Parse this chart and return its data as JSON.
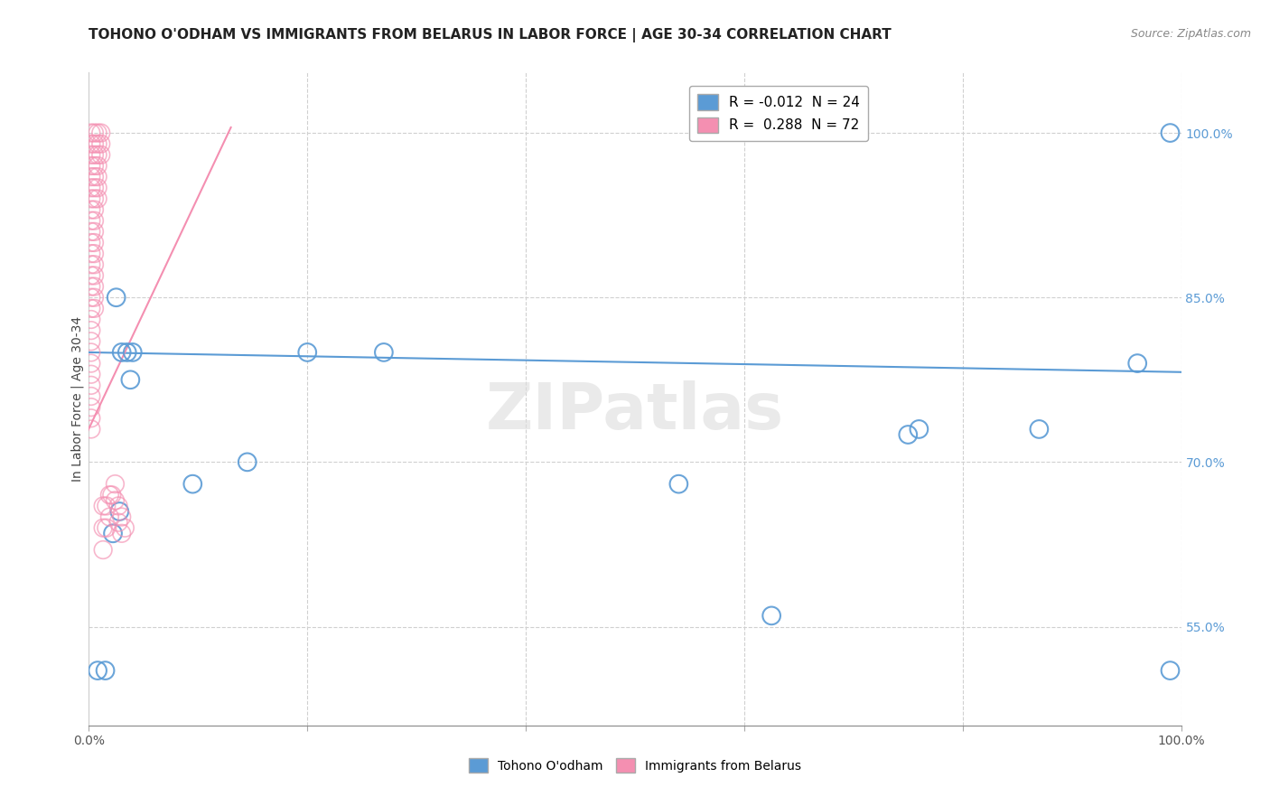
{
  "title": "TOHONO O'ODHAM VS IMMIGRANTS FROM BELARUS IN LABOR FORCE | AGE 30-34 CORRELATION CHART",
  "source": "Source: ZipAtlas.com",
  "ylabel": "In Labor Force | Age 30-34",
  "watermark": "ZIPatlas",
  "legend_entries": [
    {
      "label": "R = -0.012  N = 24",
      "color": "#7ab3e0"
    },
    {
      "label": "R =  0.288  N = 72",
      "color": "#f48fb1"
    }
  ],
  "legend_labels_bottom": [
    "Tohono O'odham",
    "Immigrants from Belarus"
  ],
  "xlim": [
    0.0,
    1.0
  ],
  "ylim": [
    0.46,
    1.055
  ],
  "xticks": [
    0.0,
    0.2,
    0.4,
    0.6,
    0.8,
    1.0
  ],
  "xticklabels": [
    "0.0%",
    "",
    "",
    "",
    "",
    "100.0%"
  ],
  "yticks": [
    0.55,
    0.7,
    0.85,
    1.0
  ],
  "yticklabels": [
    "55.0%",
    "70.0%",
    "85.0%",
    "100.0%"
  ],
  "blue_line_x": [
    0.0,
    1.0
  ],
  "blue_line_y": [
    0.8,
    0.782
  ],
  "blue_color": "#5b9bd5",
  "pink_color": "#f48fb1",
  "blue_scatter": [
    [
      0.008,
      0.51
    ],
    [
      0.015,
      0.51
    ],
    [
      0.022,
      0.635
    ],
    [
      0.028,
      0.655
    ],
    [
      0.025,
      0.85
    ],
    [
      0.03,
      0.8
    ],
    [
      0.035,
      0.8
    ],
    [
      0.038,
      0.775
    ],
    [
      0.04,
      0.8
    ],
    [
      0.095,
      0.68
    ],
    [
      0.145,
      0.7
    ],
    [
      0.2,
      0.8
    ],
    [
      0.27,
      0.8
    ],
    [
      0.54,
      0.68
    ],
    [
      0.625,
      0.56
    ],
    [
      0.75,
      0.725
    ],
    [
      0.76,
      0.73
    ],
    [
      0.87,
      0.73
    ],
    [
      0.96,
      0.79
    ],
    [
      0.99,
      1.0
    ],
    [
      0.99,
      0.51
    ]
  ],
  "pink_scatter": [
    [
      0.002,
      1.0
    ],
    [
      0.002,
      0.99
    ],
    [
      0.002,
      0.98
    ],
    [
      0.002,
      0.97
    ],
    [
      0.002,
      0.96
    ],
    [
      0.002,
      0.95
    ],
    [
      0.002,
      0.94
    ],
    [
      0.002,
      0.93
    ],
    [
      0.002,
      0.92
    ],
    [
      0.002,
      0.91
    ],
    [
      0.002,
      0.9
    ],
    [
      0.002,
      0.89
    ],
    [
      0.002,
      0.88
    ],
    [
      0.002,
      0.87
    ],
    [
      0.002,
      0.86
    ],
    [
      0.002,
      0.85
    ],
    [
      0.002,
      0.84
    ],
    [
      0.002,
      0.83
    ],
    [
      0.002,
      0.82
    ],
    [
      0.002,
      0.81
    ],
    [
      0.002,
      0.8
    ],
    [
      0.002,
      0.79
    ],
    [
      0.002,
      0.78
    ],
    [
      0.002,
      0.77
    ],
    [
      0.002,
      0.76
    ],
    [
      0.002,
      0.75
    ],
    [
      0.002,
      0.74
    ],
    [
      0.002,
      0.73
    ],
    [
      0.005,
      1.0
    ],
    [
      0.005,
      0.99
    ],
    [
      0.005,
      0.98
    ],
    [
      0.005,
      0.97
    ],
    [
      0.005,
      0.96
    ],
    [
      0.005,
      0.95
    ],
    [
      0.005,
      0.94
    ],
    [
      0.005,
      0.93
    ],
    [
      0.005,
      0.92
    ],
    [
      0.005,
      0.91
    ],
    [
      0.005,
      0.9
    ],
    [
      0.005,
      0.89
    ],
    [
      0.005,
      0.88
    ],
    [
      0.005,
      0.87
    ],
    [
      0.005,
      0.86
    ],
    [
      0.005,
      0.85
    ],
    [
      0.005,
      0.84
    ],
    [
      0.008,
      1.0
    ],
    [
      0.008,
      0.99
    ],
    [
      0.008,
      0.98
    ],
    [
      0.008,
      0.97
    ],
    [
      0.008,
      0.96
    ],
    [
      0.008,
      0.95
    ],
    [
      0.008,
      0.94
    ],
    [
      0.011,
      1.0
    ],
    [
      0.011,
      0.99
    ],
    [
      0.011,
      0.98
    ],
    [
      0.013,
      0.66
    ],
    [
      0.013,
      0.64
    ],
    [
      0.013,
      0.62
    ],
    [
      0.016,
      0.66
    ],
    [
      0.016,
      0.64
    ],
    [
      0.019,
      0.67
    ],
    [
      0.019,
      0.65
    ],
    [
      0.021,
      0.67
    ],
    [
      0.024,
      0.68
    ],
    [
      0.024,
      0.665
    ],
    [
      0.027,
      0.66
    ],
    [
      0.027,
      0.645
    ],
    [
      0.03,
      0.65
    ],
    [
      0.03,
      0.635
    ],
    [
      0.033,
      0.64
    ]
  ],
  "pink_line_x": [
    -0.005,
    0.13
  ],
  "pink_line_y": [
    0.72,
    1.005
  ],
  "background_color": "#ffffff",
  "grid_color": "#d0d0d0",
  "title_fontsize": 11,
  "axis_fontsize": 10,
  "tick_fontsize": 10,
  "legend_fontsize": 11
}
